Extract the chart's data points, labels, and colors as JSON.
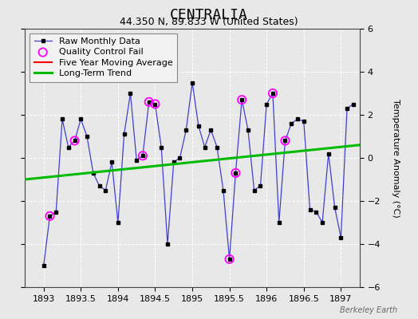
{
  "title": "CENTRALIA",
  "subtitle": "44.350 N, 89.833 W (United States)",
  "ylabel": "Temperature Anomaly (°C)",
  "watermark": "Berkeley Earth",
  "xlim": [
    1892.75,
    1897.25
  ],
  "ylim": [
    -6,
    6
  ],
  "xticks": [
    1893,
    1893.5,
    1894,
    1894.5,
    1895,
    1895.5,
    1896,
    1896.5,
    1897
  ],
  "yticks": [
    -6,
    -4,
    -2,
    0,
    2,
    4,
    6
  ],
  "background_color": "#e8e8e8",
  "plot_bg_color": "#e8e8e8",
  "raw_x": [
    1893.0,
    1893.083,
    1893.167,
    1893.25,
    1893.333,
    1893.417,
    1893.5,
    1893.583,
    1893.667,
    1893.75,
    1893.833,
    1893.917,
    1894.0,
    1894.083,
    1894.167,
    1894.25,
    1894.333,
    1894.417,
    1894.5,
    1894.583,
    1894.667,
    1894.75,
    1894.833,
    1894.917,
    1895.0,
    1895.083,
    1895.167,
    1895.25,
    1895.333,
    1895.417,
    1895.5,
    1895.583,
    1895.667,
    1895.75,
    1895.833,
    1895.917,
    1896.0,
    1896.083,
    1896.167,
    1896.25,
    1896.333,
    1896.417,
    1896.5,
    1896.583,
    1896.667,
    1896.75,
    1896.833,
    1896.917,
    1897.0,
    1897.083,
    1897.167
  ],
  "raw_y": [
    -5.0,
    -2.7,
    -2.5,
    1.8,
    0.5,
    0.8,
    1.8,
    1.0,
    -0.7,
    -1.3,
    -1.5,
    -0.2,
    -3.0,
    1.1,
    3.0,
    -0.1,
    0.1,
    2.6,
    2.5,
    0.5,
    -4.0,
    -0.2,
    0.0,
    1.3,
    3.5,
    1.5,
    0.5,
    1.3,
    0.5,
    -1.5,
    -4.7,
    -0.7,
    2.7,
    1.3,
    -1.5,
    -1.3,
    2.5,
    3.0,
    -3.0,
    0.8,
    1.6,
    1.8,
    1.7,
    -2.4,
    -2.5,
    -3.0,
    0.2,
    -2.3,
    -3.7,
    2.3,
    2.5
  ],
  "qc_fail_x": [
    1893.083,
    1893.417,
    1894.333,
    1894.417,
    1894.5,
    1895.5,
    1895.583,
    1895.667,
    1896.083,
    1896.25
  ],
  "qc_fail_y": [
    -2.7,
    0.8,
    0.1,
    2.6,
    2.5,
    -4.7,
    -0.7,
    2.7,
    3.0,
    0.8
  ],
  "trend_x": [
    1892.75,
    1897.25
  ],
  "trend_y": [
    -1.0,
    0.6
  ],
  "raw_line_color": "#4040cc",
  "raw_marker_color": "#000000",
  "qc_marker_color": "#ff00ff",
  "trend_color": "#00bb00",
  "moving_avg_color": "#ff0000",
  "grid_color": "#ffffff",
  "title_fontsize": 13,
  "subtitle_fontsize": 9,
  "axis_label_fontsize": 8,
  "tick_fontsize": 8,
  "legend_fontsize": 8
}
